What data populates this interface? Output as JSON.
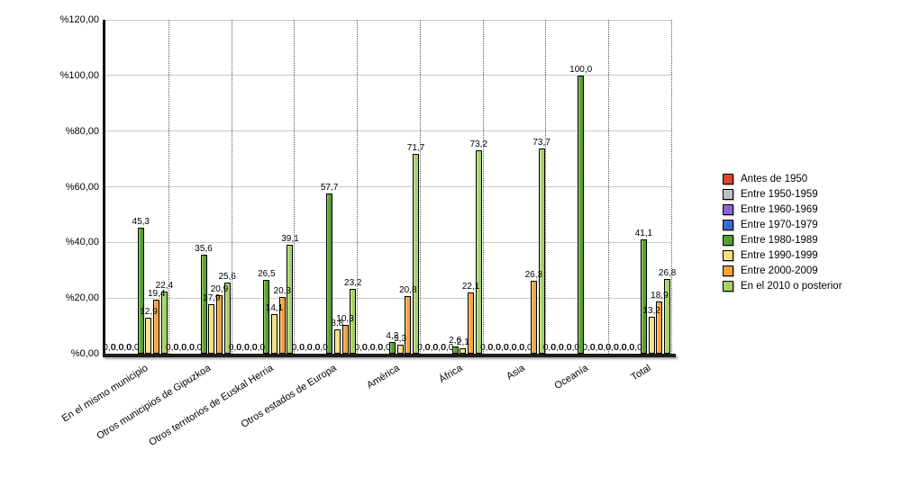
{
  "chart_data": {
    "type": "bar",
    "title": "",
    "xlabel": "",
    "ylabel": "",
    "ylim": [
      0,
      120
    ],
    "grid": "horizontal solid, vertical dotted between groups",
    "legend_position": "right",
    "y_axis": {
      "tick_values": [
        0,
        20,
        40,
        60,
        80,
        100,
        120
      ],
      "tick_labels": [
        "%0,00",
        "%20,00",
        "%40,00",
        "%60,00",
        "%80,00",
        "%100,00",
        "%120,00"
      ]
    },
    "categories": [
      "En el mismo municipio",
      "Otros municipios de Gipuzkoa",
      "Otros territorios de Euskal Herria",
      "Otros estados de Europa",
      "América",
      "África",
      "Asia",
      "Oceanía",
      "Total"
    ],
    "series": [
      {
        "name": "Antes de 1950",
        "color": "#e8432d",
        "values": [
          0,
          0,
          0,
          0,
          0,
          0,
          0,
          0,
          0
        ]
      },
      {
        "name": "Entre 1950-1959",
        "color": "#c0c0c0",
        "values": [
          0,
          0,
          0,
          0,
          0,
          0,
          0,
          0,
          0
        ]
      },
      {
        "name": "Entre 1960-1969",
        "color": "#8f62d8",
        "values": [
          0,
          0,
          0,
          0,
          0,
          0,
          0,
          0,
          0
        ]
      },
      {
        "name": "Entre 1970-1979",
        "color": "#3a6ad4",
        "values": [
          0,
          0,
          0,
          0,
          0,
          0,
          0,
          0,
          0
        ]
      },
      {
        "name": "Entre 1980-1989",
        "color": "#54a02d",
        "values": [
          45.3,
          35.6,
          26.5,
          57.7,
          4.2,
          2.6,
          0,
          100.0,
          41.1
        ]
      },
      {
        "name": "Entre 1990-1999",
        "color": "#f4de7d",
        "values": [
          12.9,
          17.9,
          14.1,
          8.8,
          3.3,
          2.1,
          0,
          0,
          13.2
        ]
      },
      {
        "name": "Entre 2000-2009",
        "color": "#f7a337",
        "values": [
          19.4,
          20.9,
          20.3,
          10.3,
          20.8,
          22.1,
          26.3,
          0,
          18.9
        ]
      },
      {
        "name": "En el 2010 o posterior",
        "color": "#a6d165",
        "values": [
          22.4,
          25.6,
          39.1,
          23.2,
          71.7,
          73.2,
          73.7,
          0,
          26.8
        ]
      }
    ],
    "value_label_decimal_separator": ",",
    "colors": {
      "gridline": "#c9c9c9",
      "axis": "#111111",
      "text": "#000000"
    }
  }
}
